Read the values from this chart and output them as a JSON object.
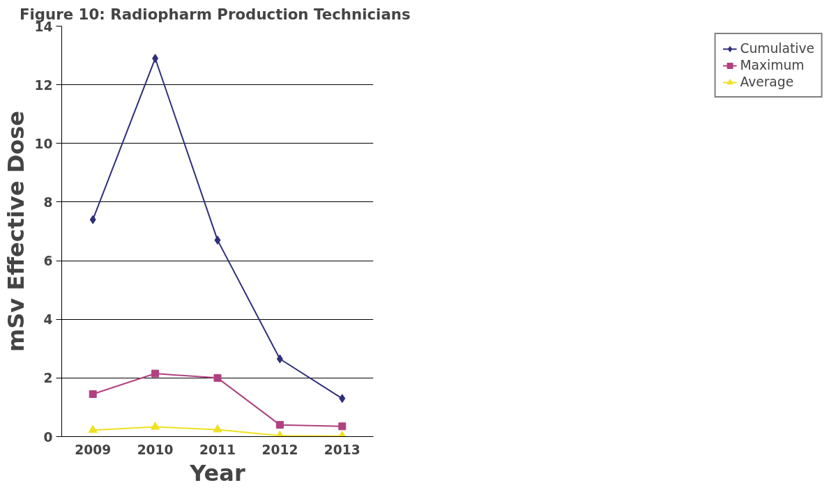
{
  "chart_data": {
    "type": "line",
    "title": "Figure 10:  Radiopharm Production Technicians",
    "xlabel": "Year",
    "ylabel": "mSv Effective Dose",
    "categories": [
      "2009",
      "2010",
      "2011",
      "2012",
      "2013"
    ],
    "series": [
      {
        "name": "Cumulative",
        "color": "#2e2e7a",
        "marker": "diamond",
        "values": [
          7.4,
          12.9,
          6.7,
          2.65,
          1.3
        ]
      },
      {
        "name": "Maximum",
        "color": "#b0407f",
        "marker": "square",
        "values": [
          1.45,
          2.15,
          2.0,
          0.4,
          0.35
        ]
      },
      {
        "name": "Average",
        "color": "#f0e020",
        "marker": "triangle",
        "values": [
          0.22,
          0.33,
          0.24,
          0.03,
          0.02
        ]
      }
    ],
    "ylim": [
      0,
      14
    ],
    "yticks": [
      0,
      2,
      4,
      6,
      8,
      10,
      12,
      14
    ],
    "grid": "y",
    "legend": "right",
    "line_style": "solid"
  }
}
